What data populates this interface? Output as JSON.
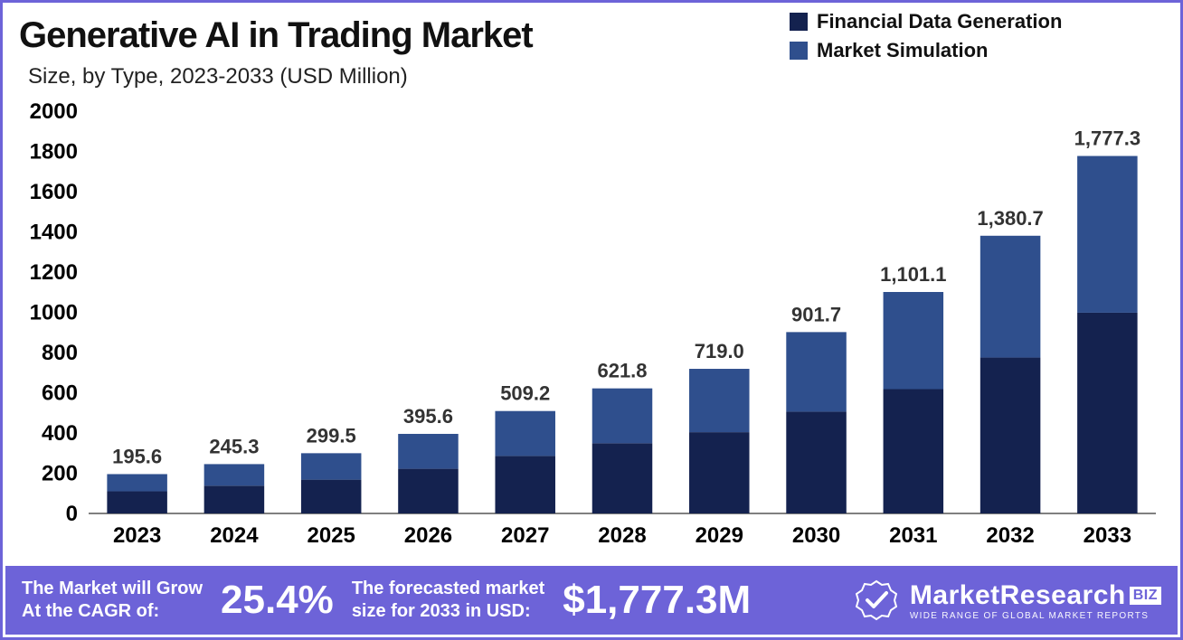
{
  "title": "Generative AI in Trading Market",
  "subtitle": "Size, by Type, 2023-2033 (USD Million)",
  "legend": {
    "series1": {
      "label": "Financial Data Generation",
      "color": "#14224f"
    },
    "series2": {
      "label": "Market Simulation",
      "color": "#2f4f8d"
    }
  },
  "chart": {
    "type": "stacked-bar",
    "background_color": "#ffffff",
    "y_axis": {
      "min": 0,
      "max": 2000,
      "step": 200,
      "tick_font_size": 24,
      "tick_font_weight": "700",
      "tick_color": "#000000"
    },
    "x_axis": {
      "tick_font_size": 24,
      "tick_font_weight": "700",
      "tick_color": "#000000"
    },
    "data_label": {
      "font_size": 22,
      "font_weight": "600",
      "color": "#333333"
    },
    "bar_width_ratio": 0.62,
    "categories": [
      "2023",
      "2024",
      "2025",
      "2026",
      "2027",
      "2028",
      "2029",
      "2030",
      "2031",
      "2032",
      "2033"
    ],
    "totals_labels": [
      "195.6",
      "245.3",
      "299.5",
      "395.6",
      "509.2",
      "621.8",
      "719.0",
      "901.7",
      "1,101.1",
      "1,380.7",
      "1,777.3"
    ],
    "totals": [
      195.6,
      245.3,
      299.5,
      395.6,
      509.2,
      621.8,
      719.0,
      901.7,
      1101.1,
      1380.7,
      1777.3
    ],
    "series": [
      {
        "name": "Financial Data Generation",
        "color": "#14224f",
        "values": [
          110,
          138,
          168,
          222,
          286,
          349,
          404,
          506,
          618,
          775,
          998
        ]
      },
      {
        "name": "Market Simulation",
        "color": "#2f4f8d",
        "values": [
          85.6,
          107.3,
          131.5,
          173.6,
          223.2,
          272.8,
          315.0,
          395.7,
          483.1,
          605.7,
          779.3
        ]
      }
    ]
  },
  "footer": {
    "cagr_label": "The Market will Grow\nAt the CAGR of:",
    "cagr_value": "25.4%",
    "forecast_label": "The forecasted market\nsize for 2033 in USD:",
    "forecast_value": "$1,777.3M"
  },
  "logo": {
    "name": "MarketResearch",
    "suffix": "BIZ",
    "tagline": "WIDE RANGE OF GLOBAL MARKET REPORTS"
  }
}
